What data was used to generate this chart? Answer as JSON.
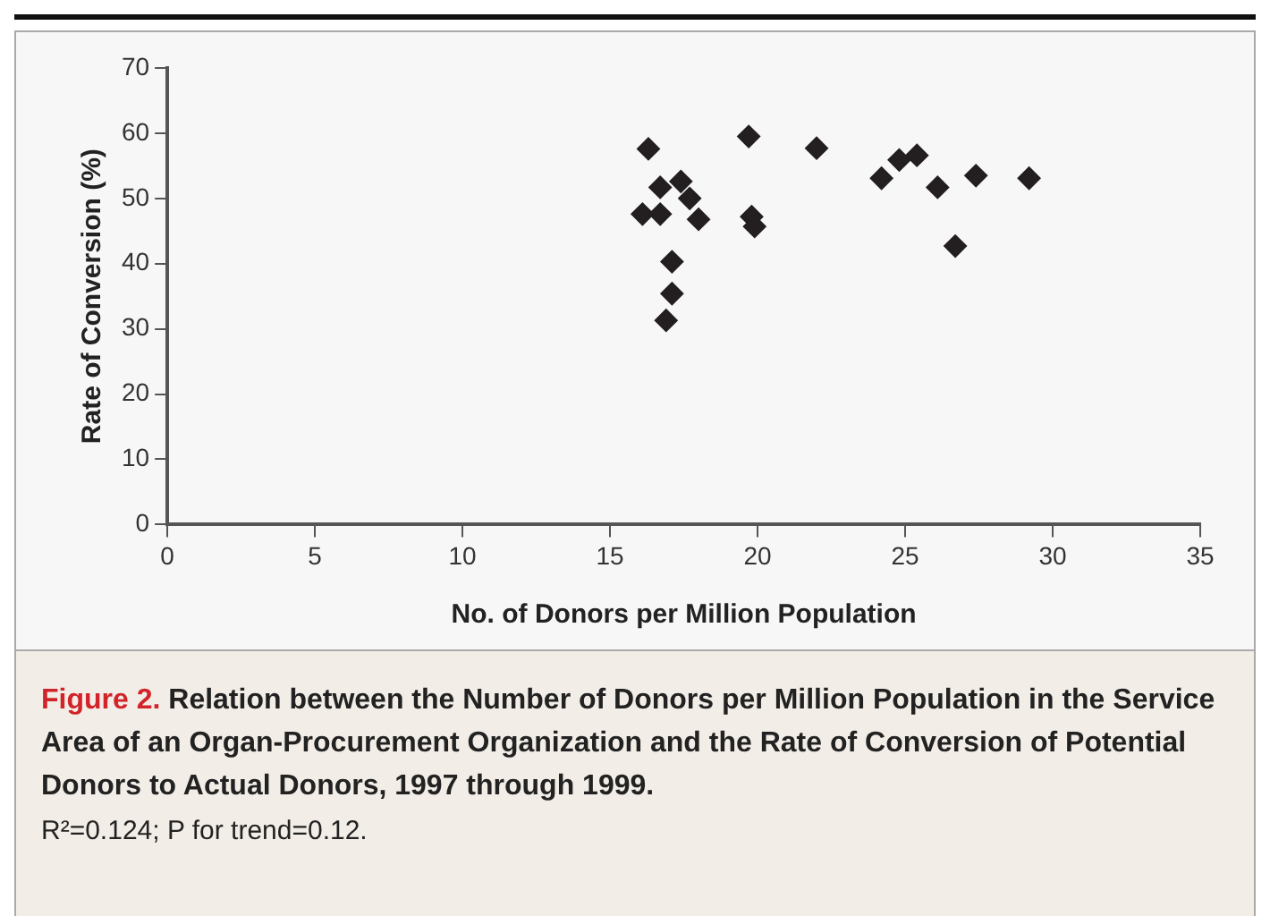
{
  "chart_data": {
    "type": "scatter",
    "title": "Figure 2. Relation between the Number of Donors per Million Population in the Service Area of an Organ-Procurement Organization and the Rate of Conversion of Potential Donors to Actual Donors, 1997 through 1999.",
    "xlabel": "No. of Donors per Million Population",
    "ylabel": "Rate of Conversion (%)",
    "annotations": [
      "R²=0.124; P for trend=0.12."
    ],
    "x": [
      16.3,
      16.7,
      16.1,
      16.7,
      17.4,
      17.7,
      18.0,
      17.1,
      17.1,
      16.9,
      19.7,
      19.8,
      19.9,
      22.0,
      24.2,
      24.8,
      25.4,
      26.1,
      26.7,
      27.4,
      29.2
    ],
    "series": [
      {
        "color": "#231f20",
        "values": [
          57.6,
          51.7,
          47.6,
          47.6,
          52.6,
          50.0,
          46.8,
          40.3,
          35.4,
          31.3,
          59.5,
          47.2,
          45.7,
          57.7,
          53.1,
          55.9,
          56.6,
          51.7,
          42.7,
          53.5,
          53.1
        ]
      }
    ],
    "xlim": [
      0,
      35
    ],
    "xticks": [
      0,
      5,
      10,
      15,
      20,
      25,
      30,
      35
    ],
    "ylim": [
      0,
      70
    ],
    "yticks": [
      0,
      10,
      20,
      30,
      40,
      50,
      60,
      70
    ],
    "grid": false,
    "legend": false,
    "marker": "diamond"
  }
}
